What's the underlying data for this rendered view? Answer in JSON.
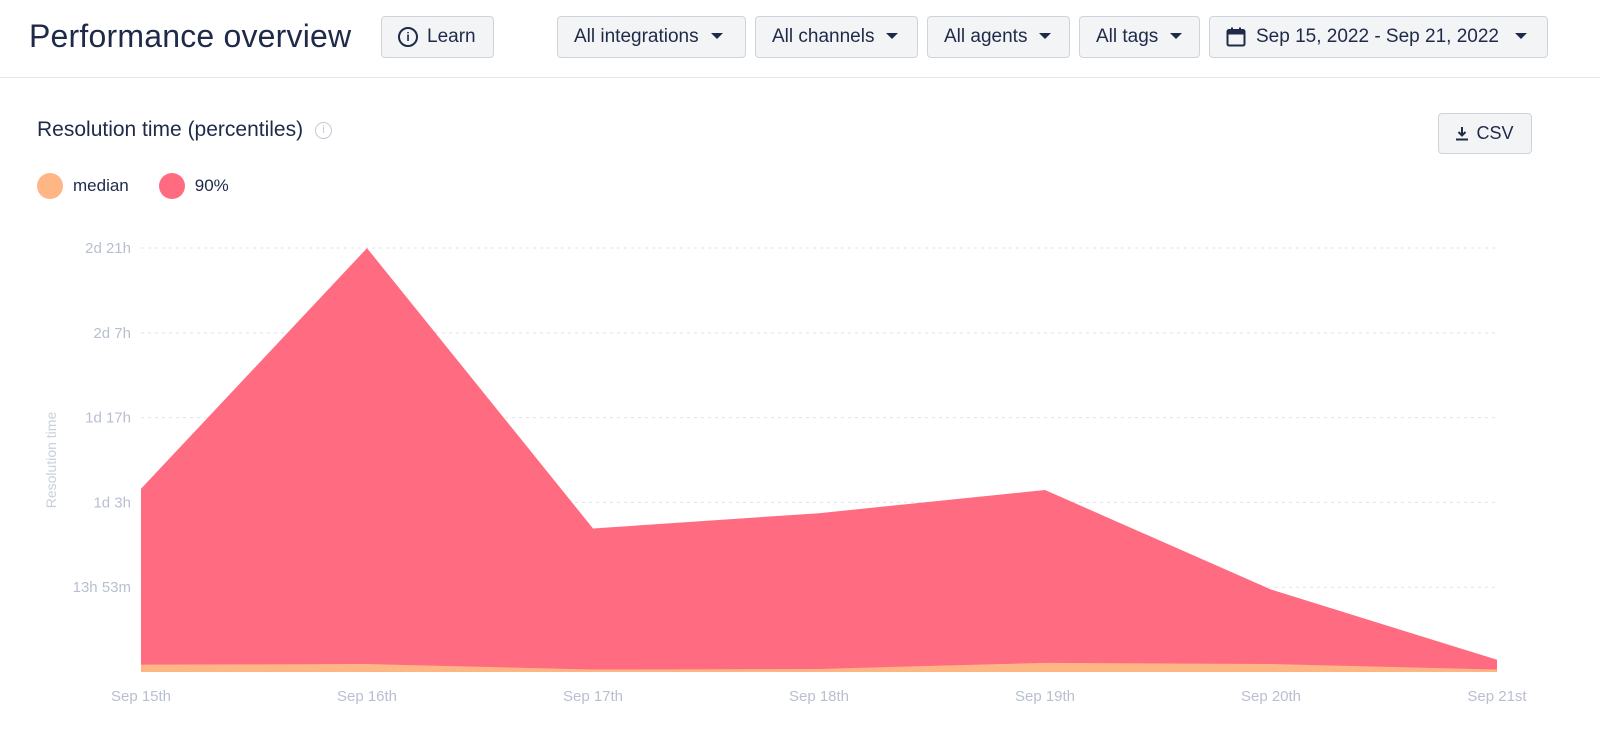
{
  "header": {
    "title": "Performance overview",
    "learn_label": "Learn",
    "filters": {
      "integrations": "All integrations",
      "channels": "All channels",
      "agents": "All agents",
      "tags": "All tags",
      "date_range": "Sep 15, 2022 - Sep 21, 2022"
    }
  },
  "panel": {
    "title": "Resolution time (percentiles)",
    "csv_label": "CSV"
  },
  "colors": {
    "median": "#ffb685",
    "p90": "#ff6b81"
  },
  "chart_data": {
    "type": "area",
    "title": "Resolution time (percentiles)",
    "ylabel": "Resolution time",
    "x": [
      "Sep 15th",
      "Sep 16th",
      "Sep 17th",
      "Sep 18th",
      "Sep 19th",
      "Sep 20th",
      "Sep 21st"
    ],
    "y_ticks": [
      "13h 53m",
      "1d 3h",
      "1d 17h",
      "2d 7h",
      "2d 21h"
    ],
    "y_tick_hours": [
      13.88,
      27.77,
      41.65,
      55.53,
      69.42
    ],
    "ylim_hours": [
      0,
      69.42
    ],
    "grid": true,
    "legend_position": "top-left",
    "series": [
      {
        "name": "median",
        "values_hours": [
          1.2,
          1.3,
          0.4,
          0.5,
          1.5,
          1.3,
          0.4
        ]
      },
      {
        "name": "90%",
        "values_hours": [
          30.0,
          69.4,
          23.5,
          26.0,
          29.8,
          13.5,
          2.0
        ]
      }
    ]
  }
}
